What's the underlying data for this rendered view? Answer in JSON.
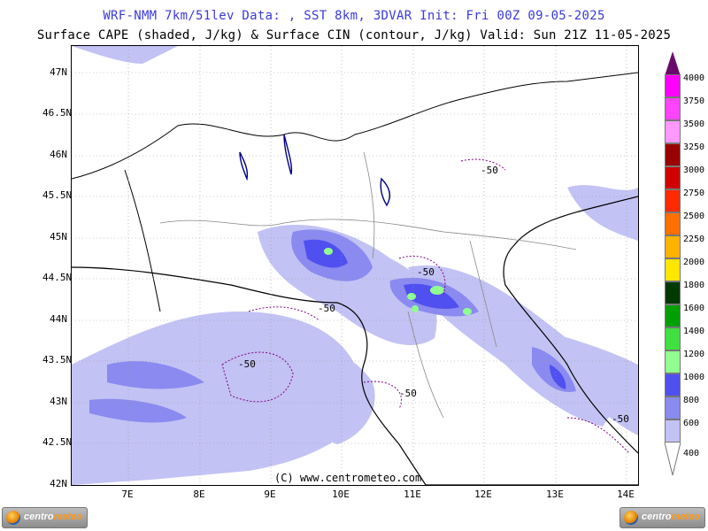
{
  "header": {
    "title_line1": "WRF-NMM 7km/51lev  Data: , SST 8km, 3DVAR  Init: Fri 00Z 09-05-2025",
    "title_line2": "Surface CAPE (shaded, J/kg) & Surface CIN (contour, J/kg)  Valid: Sun 21Z 11-05-2025"
  },
  "map": {
    "lat_labels": [
      "47N",
      "46.5N",
      "46N",
      "45.5N",
      "45N",
      "44.5N",
      "44N",
      "43.5N",
      "43N",
      "42.5N",
      "42N"
    ],
    "lon_labels": [
      "7E",
      "8E",
      "9E",
      "10E",
      "11E",
      "12E",
      "13E",
      "14E"
    ],
    "contour_labels": [
      "-50",
      "-50",
      "-50",
      "-50",
      "-50",
      "-50"
    ],
    "credit": "(C) www.centrometeo.com"
  },
  "legend": {
    "values": [
      "4000",
      "3750",
      "3500",
      "3250",
      "3000",
      "2750",
      "2500",
      "2250",
      "2000",
      "1800",
      "1600",
      "1400",
      "1200",
      "1000",
      "800",
      "600",
      "400"
    ],
    "colors": [
      "#ff00ff",
      "#ff44ff",
      "#ff99ff",
      "#9b0000",
      "#d00000",
      "#ff2a00",
      "#ff7000",
      "#ffb200",
      "#ffe600",
      "#003a00",
      "#00a000",
      "#40e040",
      "#90ff90",
      "#5050f0",
      "#8a8af0",
      "#c2c2f4"
    ]
  },
  "logos": {
    "left_text_a": "centro",
    "left_text_b": "meteo",
    "right_text_a": "centro",
    "right_text_b": "meteo"
  }
}
